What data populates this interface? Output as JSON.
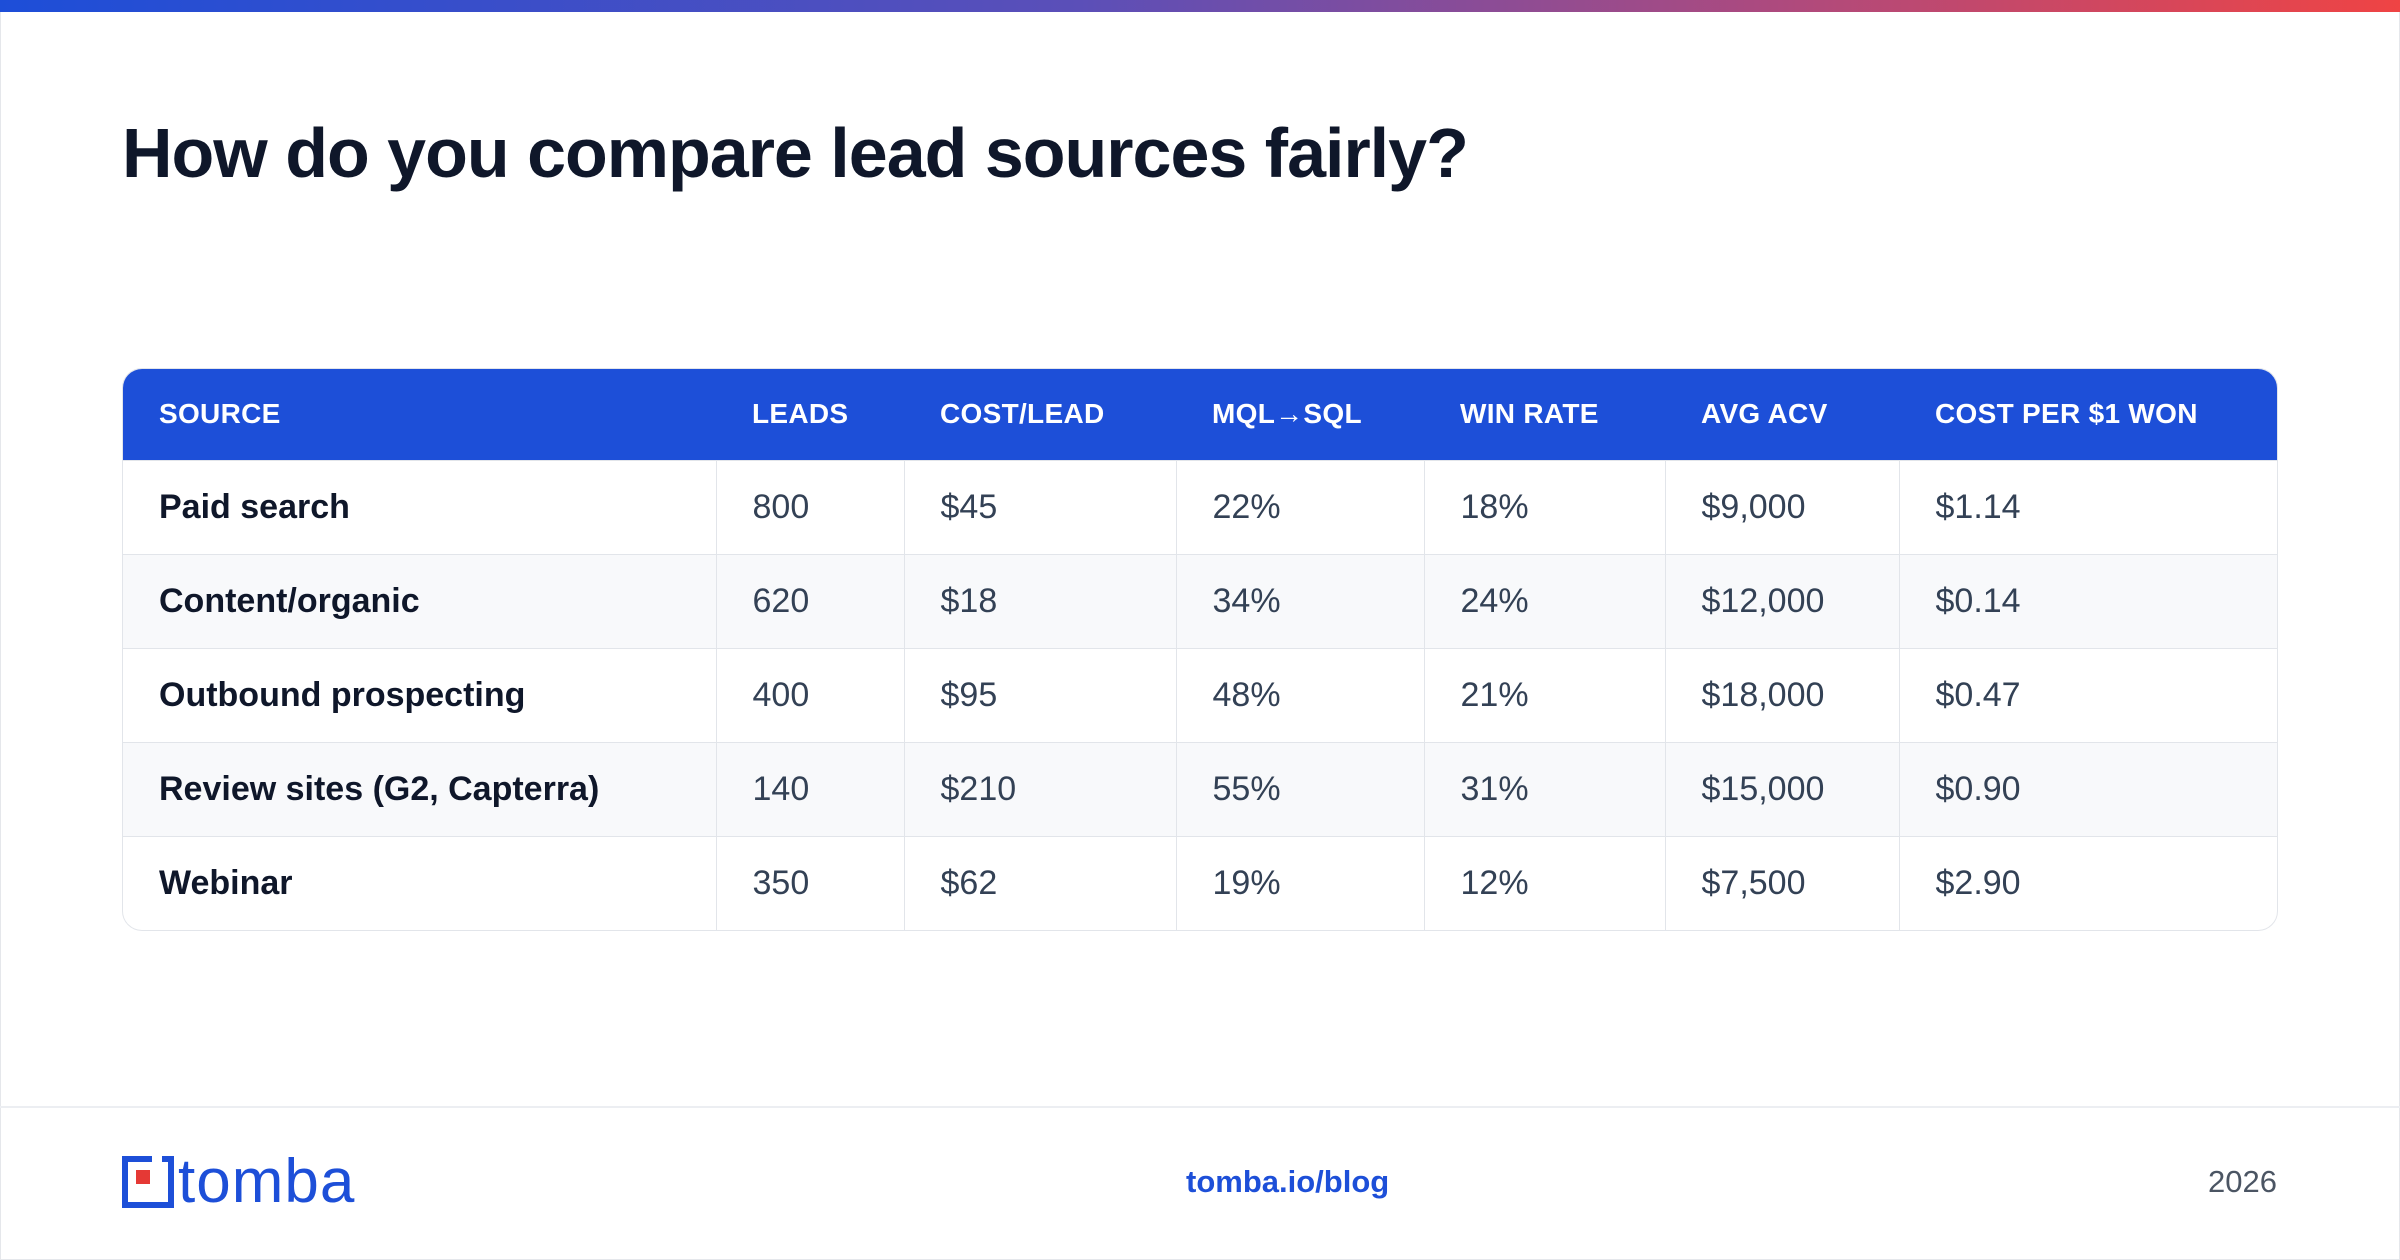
{
  "title": "How do you compare lead sources fairly?",
  "table": {
    "headers": [
      "SOURCE",
      "LEADS",
      "COST/LEAD",
      "MQL→SQL",
      "WIN RATE",
      "AVG ACV",
      "COST PER $1 WON"
    ],
    "rows": [
      [
        "Paid search",
        "800",
        "$45",
        "22%",
        "18%",
        "$9,000",
        "$1.14"
      ],
      [
        "Content/organic",
        "620",
        "$18",
        "34%",
        "24%",
        "$12,000",
        "$0.14"
      ],
      [
        "Outbound prospecting",
        "400",
        "$95",
        "48%",
        "21%",
        "$18,000",
        "$0.47"
      ],
      [
        "Review sites (G2, Capterra)",
        "140",
        "$210",
        "55%",
        "31%",
        "$15,000",
        "$0.90"
      ],
      [
        "Webinar",
        "350",
        "$62",
        "19%",
        "12%",
        "$7,500",
        "$2.90"
      ]
    ]
  },
  "footer": {
    "logo_text": "tomba",
    "link": "tomba.io/blog",
    "year": "2026"
  },
  "colors": {
    "accent": "#1d4fd8",
    "logo_red": "#e53935"
  }
}
